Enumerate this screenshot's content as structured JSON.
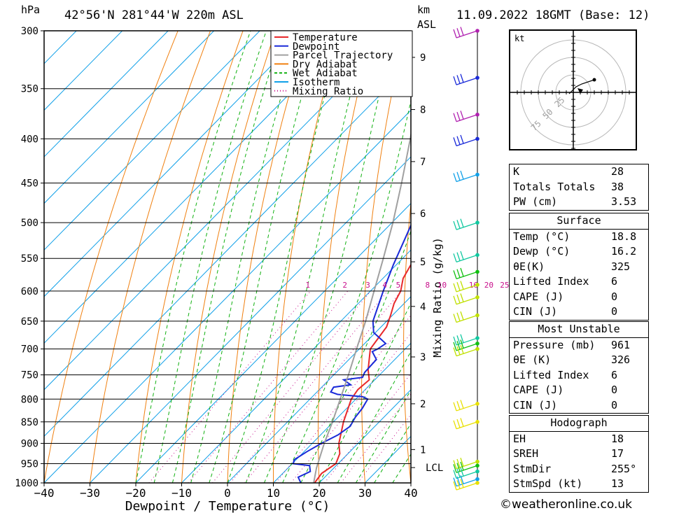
{
  "header": {
    "pressure_unit": "hPa",
    "location": "42°56'N  281°44'W  220m  ASL",
    "km_unit": "km",
    "asl_unit": "ASL",
    "datetime": "11.09.2022  18GMT  (Base: 12)"
  },
  "legend": [
    {
      "label": "Temperature",
      "color": "#e8282a",
      "style": "solid"
    },
    {
      "label": "Dewpoint",
      "color": "#1a2ad8",
      "style": "solid"
    },
    {
      "label": "Parcel Trajectory",
      "color": "#a0a0a0",
      "style": "solid"
    },
    {
      "label": "Dry Adiabat",
      "color": "#f08010",
      "style": "solid"
    },
    {
      "label": "Wet Adiabat",
      "color": "#10b010",
      "style": "dashed"
    },
    {
      "label": "Isotherm",
      "color": "#10a0e8",
      "style": "solid"
    },
    {
      "label": "Mixing Ratio",
      "color": "#c8108c",
      "style": "dotted"
    }
  ],
  "chart_data": {
    "type": "line",
    "subtype": "skew-T log-P",
    "xlabel": "Dewpoint / Temperature (°C)",
    "ylabel": "hPa",
    "xlim": [
      -40,
      40
    ],
    "ylim": [
      1000,
      300
    ],
    "x_ticks": [
      "−40",
      "−30",
      "−20",
      "−10",
      "0",
      "10",
      "20",
      "30",
      "40"
    ],
    "pressure_levels": [
      "300",
      "350",
      "400",
      "450",
      "500",
      "550",
      "600",
      "650",
      "700",
      "750",
      "800",
      "850",
      "900",
      "950",
      "1000"
    ],
    "km_ticks": [
      {
        "km": "1",
        "p": 915
      },
      {
        "km": "2",
        "p": 810
      },
      {
        "km": "3",
        "p": 715
      },
      {
        "km": "4",
        "p": 625
      },
      {
        "km": "5",
        "p": 555
      },
      {
        "km": "6",
        "p": 488
      },
      {
        "km": "7",
        "p": 425
      },
      {
        "km": "8",
        "p": 370
      },
      {
        "km": "9",
        "p": 322
      }
    ],
    "lcl": {
      "label": "LCL",
      "p": 960
    },
    "mixing_ratio_label": "Mixing Ratio (g/kg)",
    "mixing_ratio_values": [
      "1",
      "2",
      "3",
      "4",
      "5",
      "8",
      "10",
      "16",
      "20",
      "25"
    ],
    "series": [
      {
        "name": "Temperature",
        "color": "#e8282a",
        "points": [
          [
            1000,
            19.0
          ],
          [
            975,
            18.5
          ],
          [
            950,
            19.5
          ],
          [
            925,
            18.2
          ],
          [
            900,
            15.8
          ],
          [
            850,
            12.2
          ],
          [
            800,
            9.0
          ],
          [
            780,
            8.4
          ],
          [
            760,
            8.8
          ],
          [
            740,
            6.4
          ],
          [
            700,
            2.4
          ],
          [
            680,
            1.8
          ],
          [
            660,
            1.2
          ],
          [
            640,
            -0.4
          ],
          [
            620,
            -2.2
          ],
          [
            600,
            -3.4
          ],
          [
            580,
            -5.6
          ],
          [
            560,
            -6.8
          ],
          [
            550,
            -7.0
          ],
          [
            500,
            -12.6
          ],
          [
            450,
            -18.6
          ],
          [
            400,
            -24.8
          ],
          [
            370,
            -29.8
          ],
          [
            350,
            -33.0
          ],
          [
            300,
            -41.0
          ]
        ]
      },
      {
        "name": "Dewpoint",
        "color": "#1a2ad8",
        "points": [
          [
            1000,
            16.0
          ],
          [
            985,
            14.2
          ],
          [
            970,
            15.6
          ],
          [
            955,
            14.2
          ],
          [
            950,
            10.2
          ],
          [
            940,
            9.6
          ],
          [
            920,
            10.6
          ],
          [
            900,
            12.0
          ],
          [
            880,
            13.8
          ],
          [
            860,
            14.6
          ],
          [
            840,
            13.8
          ],
          [
            820,
            13.4
          ],
          [
            800,
            12.6
          ],
          [
            795,
            11.0
          ],
          [
            790,
            5.0
          ],
          [
            785,
            3.0
          ],
          [
            775,
            2.6
          ],
          [
            770,
            5.8
          ],
          [
            760,
            3.2
          ],
          [
            755,
            6.8
          ],
          [
            745,
            6.2
          ],
          [
            720,
            6.0
          ],
          [
            705,
            3.4
          ],
          [
            700,
            4.0
          ],
          [
            690,
            4.6
          ],
          [
            670,
            -0.4
          ],
          [
            650,
            -3.0
          ],
          [
            600,
            -7.2
          ],
          [
            560,
            -10.6
          ],
          [
            550,
            -11.4
          ],
          [
            500,
            -15.6
          ],
          [
            450,
            -21.6
          ],
          [
            400,
            -30.4
          ],
          [
            370,
            -35.6
          ],
          [
            350,
            -38.0
          ],
          [
            300,
            -47.0
          ]
        ]
      },
      {
        "name": "Parcel Trajectory",
        "color": "#a0a0a0",
        "points": [
          [
            1000,
            18.8
          ],
          [
            961,
            16.2
          ],
          [
            900,
            12.6
          ],
          [
            850,
            9.8
          ],
          [
            800,
            6.6
          ],
          [
            750,
            3.2
          ],
          [
            700,
            -0.6
          ],
          [
            650,
            -4.6
          ],
          [
            600,
            -9.2
          ],
          [
            550,
            -14.2
          ],
          [
            500,
            -19.8
          ],
          [
            450,
            -26.4
          ],
          [
            400,
            -34.0
          ],
          [
            350,
            -42.8
          ],
          [
            300,
            -53.0
          ]
        ]
      }
    ],
    "wind_barbs": [
      {
        "p": 300,
        "color": "#b020b0",
        "fill": "#b020b0"
      },
      {
        "p": 340,
        "color": "#1a2ad8",
        "fill": "#1a2ad8"
      },
      {
        "p": 375,
        "color": "#b020b0",
        "fill": "#b020b0"
      },
      {
        "p": 400,
        "color": "#1a2ad8",
        "fill": "#1a2ad8"
      },
      {
        "p": 440,
        "color": "#10a0e8",
        "fill": "#10a0e8"
      },
      {
        "p": 500,
        "color": "#10c8a0",
        "fill": "#10c8a0"
      },
      {
        "p": 545,
        "color": "#10c8a0",
        "fill": "#10c8a0"
      },
      {
        "p": 570,
        "color": "#10c010",
        "fill": "#10c010"
      },
      {
        "p": 590,
        "color": "#c0e000",
        "fill": "#c0e000"
      },
      {
        "p": 610,
        "color": "#c0e000",
        "fill": "#c0e000"
      },
      {
        "p": 640,
        "color": "#c0e000",
        "fill": "#c0e000"
      },
      {
        "p": 680,
        "color": "#10c8a0",
        "fill": "#10c8a0"
      },
      {
        "p": 690,
        "color": "#10c010",
        "fill": "#10c010"
      },
      {
        "p": 700,
        "color": "#c0e000",
        "fill": "#c0e000"
      },
      {
        "p": 810,
        "color": "#e8e000",
        "fill": "#e8e000"
      },
      {
        "p": 850,
        "color": "#e8e000",
        "fill": "#e8e000"
      },
      {
        "p": 945,
        "color": "#c0e000",
        "fill": "#c0e000"
      },
      {
        "p": 955,
        "color": "#10c010",
        "fill": "#10c010"
      },
      {
        "p": 970,
        "color": "#10c8a0",
        "fill": "#10c8a0"
      },
      {
        "p": 990,
        "color": "#10a0e8",
        "fill": "#10a0e8"
      },
      {
        "p": 1000,
        "color": "#e8e000",
        "fill": "#e8e000"
      }
    ]
  },
  "hodograph": {
    "unit": "kt",
    "ring_labels": [
      "25",
      "50",
      "75"
    ]
  },
  "indices": {
    "rows": [
      {
        "label": "K",
        "value": "28"
      },
      {
        "label": "Totals Totals",
        "value": "38"
      },
      {
        "label": "PW (cm)",
        "value": "3.53"
      }
    ]
  },
  "surface": {
    "title": "Surface",
    "rows": [
      {
        "label": "Temp (°C)",
        "value": "18.8"
      },
      {
        "label": "Dewp (°C)",
        "value": "16.2"
      },
      {
        "label": "θE(K)",
        "value": "325"
      },
      {
        "label": "Lifted Index",
        "value": "6"
      },
      {
        "label": "CAPE (J)",
        "value": "0"
      },
      {
        "label": "CIN (J)",
        "value": "0"
      }
    ]
  },
  "most_unstable": {
    "title": "Most Unstable",
    "rows": [
      {
        "label": "Pressure (mb)",
        "value": "961"
      },
      {
        "label": "θE (K)",
        "value": "326"
      },
      {
        "label": "Lifted Index",
        "value": "6"
      },
      {
        "label": "CAPE (J)",
        "value": "0"
      },
      {
        "label": "CIN (J)",
        "value": "0"
      }
    ]
  },
  "hodograph_table": {
    "title": "Hodograph",
    "rows": [
      {
        "label": "EH",
        "value": "18"
      },
      {
        "label": "SREH",
        "value": "17"
      },
      {
        "label": "StmDir",
        "value": "255°"
      },
      {
        "label": "StmSpd (kt)",
        "value": "13"
      }
    ]
  },
  "footer": {
    "credit": "©weatheronline.co.uk"
  }
}
